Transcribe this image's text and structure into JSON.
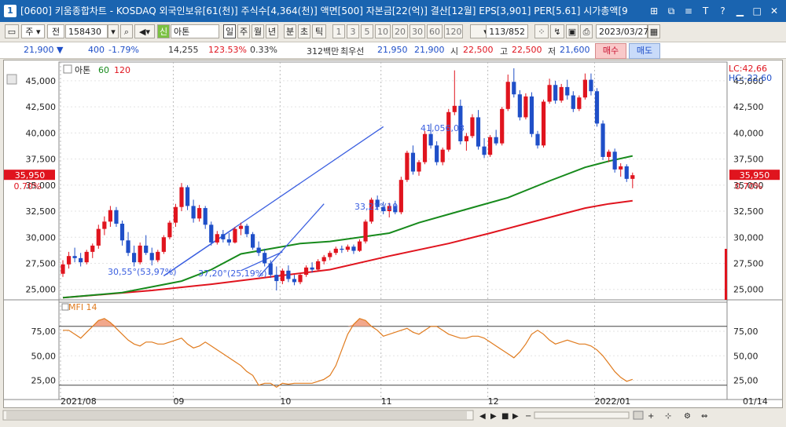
{
  "window": {
    "app_number": "1",
    "title": "[0600] 키움종합차트 - KOSDAQ 외국인보유[61(천)] 주식수[4,364(천)] 액면[500] 자본금[22(억)] 결산[12월] EPS[3,901] PER[5.61] 시가총액[9"
  },
  "toolbar": {
    "period_label": "주",
    "type_label": "전",
    "code": "158430",
    "chart_type_badge": "신",
    "stock_name": "아톤",
    "interval_buttons": [
      "일",
      "주",
      "월",
      "년",
      "분",
      "초",
      "틱"
    ],
    "minute_buttons": [
      "1",
      "3",
      "5",
      "10",
      "20",
      "30",
      "60",
      "120"
    ],
    "page_counter": "113/852",
    "date": "2023/03/27"
  },
  "quote": {
    "price": "21,900",
    "change": "400",
    "change_pct": "-1.79%",
    "volume": "14,255",
    "volume_ratio": "123.53%",
    "turnover_pct": "0.33%",
    "amount": "312백만",
    "best_bid_label": "최우선",
    "best_ask": "21,950",
    "best_bid": "21,900",
    "open_label": "시",
    "open": "22,500",
    "high_label": "고",
    "high": "22,500",
    "low_label": "저",
    "low": "21,600",
    "buy_label": "매수",
    "sell_label": "매도"
  },
  "chart_data": {
    "type": "candlestick",
    "legend": {
      "name": "아톤",
      "ma1": "60",
      "ma2": "120",
      "position": "top-left"
    },
    "colors": {
      "up": "#e0141e",
      "down": "#1f4fc8",
      "ma60": "#178a1c",
      "ma120": "#e0141e",
      "mfi": "#e07b1e"
    },
    "lc_label": "LC:42,66",
    "hc_label": "HC:-22,60",
    "current_price_label": "35,950",
    "current_pct_label": "0.70%",
    "y_ticks": [
      25000,
      27500,
      30000,
      32500,
      35000,
      37500,
      40000,
      42500,
      45000
    ],
    "y_tick_labels": [
      "25,000",
      "27,500",
      "30,000",
      "32,500",
      "35,000",
      "37,500",
      "40,000",
      "42,500",
      "45,000"
    ],
    "ylim": [
      24000,
      46500
    ],
    "x_labels": [
      "2021/08",
      "09",
      "10",
      "11",
      "12",
      "2022/01",
      "01/14"
    ],
    "annotations": [
      "41,056,03",
      "30,55°(53,97%)",
      "33,21°(19",
      "37,20°(25,19%)"
    ],
    "candles": [
      [
        26500,
        27800,
        26200,
        27400
      ],
      [
        27400,
        28600,
        27000,
        28200
      ],
      [
        28200,
        29000,
        27600,
        28000
      ],
      [
        28000,
        28500,
        27200,
        27600
      ],
      [
        27600,
        28800,
        27400,
        28600
      ],
      [
        28600,
        29400,
        28000,
        29200
      ],
      [
        29200,
        31200,
        28900,
        30800
      ],
      [
        30800,
        32000,
        30200,
        31500
      ],
      [
        31500,
        33000,
        31000,
        32600
      ],
      [
        32600,
        32900,
        31000,
        31300
      ],
      [
        31300,
        31600,
        29200,
        29700
      ],
      [
        29700,
        30500,
        28200,
        28500
      ],
      [
        28500,
        29200,
        27200,
        27600
      ],
      [
        27600,
        29500,
        27400,
        29200
      ],
      [
        29200,
        30200,
        28300,
        28500
      ],
      [
        28500,
        29000,
        27300,
        27800
      ],
      [
        27800,
        28800,
        27600,
        28600
      ],
      [
        28600,
        30200,
        28400,
        30000
      ],
      [
        30000,
        31600,
        29800,
        31400
      ],
      [
        31400,
        33200,
        31000,
        32900
      ],
      [
        32900,
        35200,
        32500,
        34800
      ],
      [
        34800,
        35000,
        32600,
        33000
      ],
      [
        33000,
        33600,
        31400,
        31800
      ],
      [
        31800,
        33100,
        31500,
        32800
      ],
      [
        32800,
        33000,
        30800,
        31200
      ],
      [
        31200,
        31500,
        29200,
        29500
      ],
      [
        29500,
        30600,
        29300,
        30300
      ],
      [
        30300,
        30700,
        29500,
        29800
      ],
      [
        29800,
        30400,
        29200,
        29500
      ],
      [
        29500,
        31000,
        29400,
        30800
      ],
      [
        30800,
        31400,
        30200,
        31100
      ],
      [
        31100,
        31300,
        30000,
        30300
      ],
      [
        30300,
        30500,
        28800,
        29000
      ],
      [
        29000,
        29600,
        28200,
        28500
      ],
      [
        28500,
        28900,
        27200,
        27500
      ],
      [
        27500,
        27800,
        26100,
        26400
      ],
      [
        26400,
        27200,
        24900,
        25800
      ],
      [
        25800,
        27000,
        25500,
        26800
      ],
      [
        26800,
        27300,
        25700,
        26000
      ],
      [
        26000,
        26400,
        25400,
        25700
      ],
      [
        25700,
        26600,
        25500,
        26400
      ],
      [
        26400,
        27300,
        26200,
        27100
      ],
      [
        27100,
        27600,
        26600,
        26900
      ],
      [
        26900,
        27900,
        26700,
        27700
      ],
      [
        27700,
        28300,
        27400,
        28100
      ],
      [
        28100,
        28700,
        27800,
        28500
      ],
      [
        28500,
        29100,
        28300,
        28900
      ],
      [
        28900,
        29200,
        28500,
        28800
      ],
      [
        28800,
        29300,
        28600,
        29100
      ],
      [
        29100,
        29300,
        28400,
        28700
      ],
      [
        28700,
        29800,
        28600,
        29600
      ],
      [
        29600,
        31700,
        29400,
        31500
      ],
      [
        31500,
        33800,
        31300,
        33600
      ],
      [
        33600,
        34000,
        32600,
        32900
      ],
      [
        32900,
        33400,
        32200,
        32500
      ],
      [
        32500,
        33300,
        31900,
        33000
      ],
      [
        33000,
        33500,
        32200,
        32400
      ],
      [
        32400,
        35800,
        32200,
        35500
      ],
      [
        35500,
        38300,
        35300,
        38100
      ],
      [
        38100,
        38800,
        36000,
        36300
      ],
      [
        36300,
        37400,
        35900,
        37200
      ],
      [
        37200,
        40200,
        37000,
        39900
      ],
      [
        39900,
        40900,
        38500,
        38800
      ],
      [
        38800,
        39200,
        36900,
        37200
      ],
      [
        37200,
        38600,
        36900,
        38400
      ],
      [
        38400,
        42300,
        38200,
        42000
      ],
      [
        42000,
        46000,
        41700,
        42600
      ],
      [
        42600,
        43200,
        38900,
        39200
      ],
      [
        39200,
        40000,
        38300,
        39700
      ],
      [
        39700,
        41800,
        39500,
        41500
      ],
      [
        41500,
        42200,
        38400,
        38700
      ],
      [
        38700,
        39500,
        37600,
        37900
      ],
      [
        37900,
        39800,
        37700,
        39600
      ],
      [
        39600,
        40300,
        38800,
        39000
      ],
      [
        39000,
        42500,
        38800,
        42300
      ],
      [
        42300,
        45600,
        42100,
        44900
      ],
      [
        44900,
        46200,
        43400,
        43700
      ],
      [
        43700,
        44100,
        41200,
        41500
      ],
      [
        41500,
        43800,
        41300,
        43500
      ],
      [
        43500,
        43900,
        39600,
        39900
      ],
      [
        39900,
        40200,
        38500,
        38800
      ],
      [
        38800,
        43200,
        38600,
        43000
      ],
      [
        43000,
        45200,
        42800,
        44600
      ],
      [
        44600,
        45000,
        42800,
        43100
      ],
      [
        43100,
        44700,
        42900,
        44400
      ],
      [
        44400,
        45100,
        43200,
        43600
      ],
      [
        43600,
        44000,
        42000,
        42300
      ],
      [
        42300,
        43600,
        42100,
        43400
      ],
      [
        43400,
        45700,
        43200,
        45100
      ],
      [
        45100,
        45700,
        43600,
        44000
      ],
      [
        44000,
        44300,
        40600,
        40900
      ],
      [
        40900,
        41200,
        37400,
        37700
      ],
      [
        37700,
        38400,
        37200,
        38200
      ],
      [
        38200,
        38500,
        36200,
        36500
      ],
      [
        36500,
        37100,
        35800,
        36800
      ],
      [
        36800,
        37000,
        35300,
        35600
      ],
      [
        35600,
        36200,
        34700,
        35950
      ]
    ],
    "ma60": [
      [
        0,
        24200
      ],
      [
        10,
        24700
      ],
      [
        20,
        25800
      ],
      [
        25,
        26900
      ],
      [
        30,
        28400
      ],
      [
        40,
        29400
      ],
      [
        45,
        29600
      ],
      [
        55,
        30400
      ],
      [
        60,
        31400
      ],
      [
        65,
        32200
      ],
      [
        70,
        33000
      ],
      [
        75,
        33800
      ],
      [
        82,
        35400
      ],
      [
        88,
        36700
      ],
      [
        92,
        37300
      ],
      [
        96,
        37800
      ]
    ],
    "ma120": [
      [
        0,
        24200
      ],
      [
        15,
        24900
      ],
      [
        25,
        25500
      ],
      [
        35,
        26200
      ],
      [
        45,
        26900
      ],
      [
        55,
        28200
      ],
      [
        65,
        29400
      ],
      [
        72,
        30400
      ],
      [
        78,
        31300
      ],
      [
        84,
        32200
      ],
      [
        88,
        32800
      ],
      [
        92,
        33200
      ],
      [
        96,
        33500
      ]
    ],
    "trendlines": [
      {
        "from": [
          17,
          26300
        ],
        "to": [
          54,
          40600
        ]
      },
      {
        "from": [
          17,
          26300
        ],
        "to": [
          29,
          30900
        ]
      },
      {
        "from": [
          33,
          26200
        ],
        "to": [
          44,
          33200
        ]
      },
      {
        "from": [
          30,
          26800
        ],
        "to": [
          37,
          28600
        ]
      }
    ],
    "mfi": {
      "label": "MFI 14",
      "y_ticks": [
        25,
        50,
        75
      ],
      "y_tick_labels": [
        "25,00",
        "50,00",
        "75,00"
      ],
      "levels": [
        80,
        20
      ],
      "ylim": [
        15,
        95
      ],
      "values": [
        76,
        76,
        72,
        68,
        74,
        80,
        86,
        88,
        84,
        78,
        72,
        66,
        62,
        60,
        64,
        64,
        62,
        62,
        64,
        66,
        68,
        62,
        58,
        60,
        64,
        60,
        56,
        52,
        48,
        44,
        40,
        34,
        30,
        20,
        22,
        22,
        18,
        22,
        21,
        22,
        22,
        22,
        22,
        24,
        26,
        30,
        40,
        56,
        72,
        82,
        88,
        86,
        80,
        76,
        70,
        72,
        74,
        76,
        78,
        74,
        72,
        76,
        80,
        80,
        76,
        72,
        70,
        68,
        68,
        70,
        70,
        68,
        64,
        60,
        56,
        52,
        48,
        54,
        62,
        72,
        76,
        72,
        66,
        62,
        64,
        66,
        64,
        62,
        62,
        60,
        56,
        50,
        42,
        34,
        28,
        24,
        26
      ]
    }
  }
}
